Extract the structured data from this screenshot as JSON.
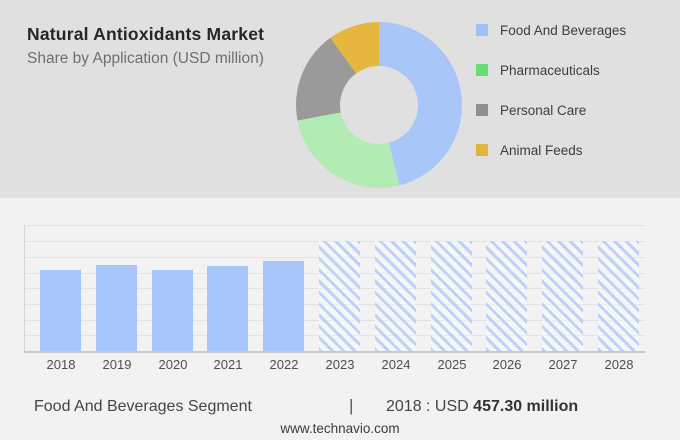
{
  "header": {
    "title": "Natural Antioxidants Market",
    "subtitle": "Share by Application (USD million)"
  },
  "colors": {
    "top_panel_bg": "#e0e0e0",
    "bottom_panel_bg": "#f2f2f2",
    "title_text": "#262626",
    "subtitle_text": "#6f6f6f",
    "bar_solid_blue": "#a8c6fa",
    "bar_hatch_blue": "#bcd2f8",
    "gridline": "#e3e3e3",
    "axis_line": "#c9c9c9"
  },
  "legend": {
    "items": [
      {
        "label": "Food And Beverages",
        "color": "#9cc0f7"
      },
      {
        "label": "Pharmaceuticals",
        "color": "#66dd74"
      },
      {
        "label": "Personal Care",
        "color": "#8f8f8f"
      },
      {
        "label": "Animal Feeds",
        "color": "#deb53d"
      }
    ]
  },
  "chart_data": [
    {
      "type": "pie",
      "donut": true,
      "title": "Natural Antioxidants Market — Share by Application (USD million)",
      "labels": [
        "Food And Beverages",
        "Pharmaceuticals",
        "Personal Care",
        "Animal Feeds"
      ],
      "values_pct": [
        46,
        26,
        18,
        10
      ],
      "colors": [
        "#a8c6f7",
        "#b2ecb4",
        "#9a9a9a",
        "#e5b73e"
      ],
      "legend_position": "right",
      "note": "Shares estimated from slice angles; no numeric labels shown"
    },
    {
      "type": "bar",
      "categories": [
        "2018",
        "2019",
        "2020",
        "2021",
        "2022",
        "2023",
        "2024",
        "2025",
        "2026",
        "2027",
        "2028"
      ],
      "series": [
        {
          "name": "Food And Beverages",
          "values_est_usd_million": [
            457.3,
            483.8,
            454.0,
            476.5,
            508.0,
            617,
            617,
            617,
            617,
            617,
            617
          ]
        }
      ],
      "anchor_label": {
        "year": "2018",
        "value": "USD 457.30 million"
      },
      "forecast_years": [
        "2023",
        "2024",
        "2025",
        "2026",
        "2027",
        "2028"
      ],
      "xlabel": "",
      "ylabel": "",
      "grid": true,
      "note": "Only 2018 value is labeled; other values estimated from bar heights. 2023-2028 drawn as equal-height hatched forecast bars."
    }
  ],
  "footer": {
    "segment_label": "Food And Beverages Segment",
    "separator": "|",
    "value_prefix": "2018 : USD",
    "value_bold": "457.30 million",
    "website": "www.technavio.com"
  }
}
